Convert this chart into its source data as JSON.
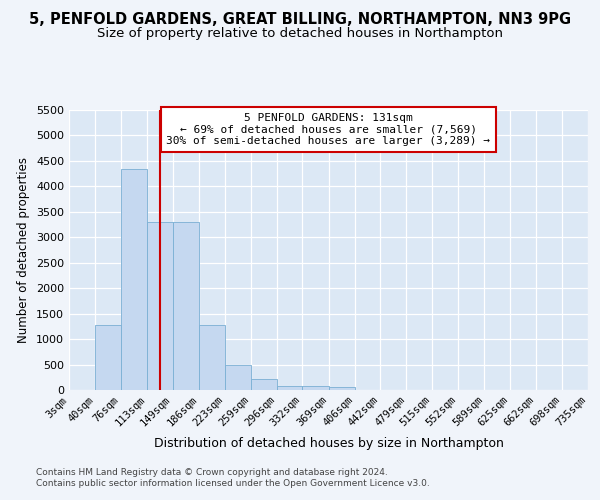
{
  "title1": "5, PENFOLD GARDENS, GREAT BILLING, NORTHAMPTON, NN3 9PG",
  "title2": "Size of property relative to detached houses in Northampton",
  "xlabel": "Distribution of detached houses by size in Northampton",
  "ylabel": "Number of detached properties",
  "footer1": "Contains HM Land Registry data © Crown copyright and database right 2024.",
  "footer2": "Contains public sector information licensed under the Open Government Licence v3.0.",
  "bin_edges": [
    3,
    40,
    76,
    113,
    149,
    186,
    223,
    259,
    296,
    332,
    369,
    406,
    442,
    479,
    515,
    552,
    589,
    625,
    662,
    698,
    735
  ],
  "bar_heights": [
    0,
    1270,
    4350,
    3300,
    3300,
    1270,
    490,
    225,
    80,
    70,
    60,
    0,
    0,
    0,
    0,
    0,
    0,
    0,
    0,
    0
  ],
  "bar_color": "#c5d8f0",
  "bar_edgecolor": "#7aafd4",
  "vline_x": 131,
  "vline_color": "#cc0000",
  "annotation_line1": "5 PENFOLD GARDENS: 131sqm",
  "annotation_line2": "← 69% of detached houses are smaller (7,569)",
  "annotation_line3": "30% of semi-detached houses are larger (3,289) →",
  "annotation_box_facecolor": "#ffffff",
  "annotation_border_color": "#cc0000",
  "ylim": [
    0,
    5500
  ],
  "yticks": [
    0,
    500,
    1000,
    1500,
    2000,
    2500,
    3000,
    3500,
    4000,
    4500,
    5000,
    5500
  ],
  "plot_bg_color": "#dce8f5",
  "fig_bg_color": "#f0f4fa",
  "grid_color": "#ffffff",
  "title1_fontsize": 10.5,
  "title2_fontsize": 9.5,
  "ylabel_fontsize": 8.5,
  "xlabel_fontsize": 9,
  "footer_fontsize": 6.5,
  "tick_fontsize": 8,
  "xtick_fontsize": 7.5
}
